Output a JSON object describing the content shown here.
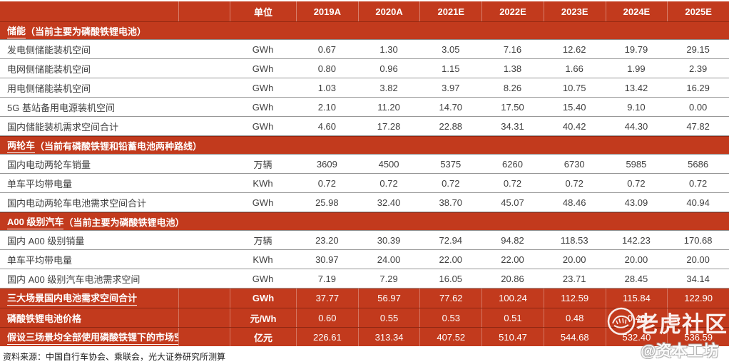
{
  "colors": {
    "primary_red": "#c23a1d",
    "row_text": "#3f3f3f",
    "divider_gray": "#979797",
    "white_text": "#ffffff"
  },
  "table": {
    "header": {
      "labels": [
        "",
        "",
        "单位",
        "2019A",
        "2020A",
        "2021E",
        "2022E",
        "2023E",
        "2024E",
        "2025E"
      ]
    },
    "sections": [
      {
        "title_main": "储能",
        "title_note": "（当前主要为磷酸铁锂电池）",
        "rows": [
          {
            "label": "发电侧储能装机空间",
            "unit": "GWh",
            "values": [
              "0.67",
              "1.30",
              "3.05",
              "7.16",
              "12.62",
              "19.79",
              "29.15"
            ]
          },
          {
            "label": "电网侧储能装机空间",
            "unit": "GWh",
            "values": [
              "0.80",
              "0.96",
              "1.15",
              "1.38",
              "1.66",
              "1.99",
              "2.39"
            ]
          },
          {
            "label": "用电侧储能装机空间",
            "unit": "GWh",
            "values": [
              "1.03",
              "3.82",
              "3.97",
              "8.26",
              "10.75",
              "13.42",
              "16.29"
            ]
          },
          {
            "label": "5G 基站备用电源装机空间",
            "unit": "GWh",
            "values": [
              "2.10",
              "11.20",
              "14.70",
              "17.50",
              "15.40",
              "9.10",
              "0.00"
            ]
          },
          {
            "label": "国内储能装机需求空间合计",
            "unit": "GWh",
            "values": [
              "4.60",
              "17.28",
              "22.88",
              "34.31",
              "40.42",
              "44.30",
              "47.82"
            ]
          }
        ]
      },
      {
        "title_main": "两轮车",
        "title_note": "（当前有磷酸铁锂和铅蓄电池两种路线）",
        "rows": [
          {
            "label": "国内电动两轮车销量",
            "unit": "万辆",
            "values": [
              "3609",
              "4500",
              "5375",
              "6260",
              "6730",
              "5985",
              "5686"
            ]
          },
          {
            "label": "单车平均带电量",
            "unit": "KWh",
            "values": [
              "0.72",
              "0.72",
              "0.72",
              "0.72",
              "0.72",
              "0.72",
              "0.72"
            ]
          },
          {
            "label": "国内电动两轮车电池需求空间合计",
            "unit": "GWh",
            "values": [
              "25.98",
              "32.40",
              "38.70",
              "45.07",
              "48.46",
              "43.09",
              "40.94"
            ]
          }
        ]
      },
      {
        "title_main": "A00 级别汽车",
        "title_note": "（当前主要为磷酸铁锂电池）",
        "rows": [
          {
            "label": "国内 A00 级别销量",
            "unit": "万辆",
            "values": [
              "23.20",
              "30.39",
              "72.94",
              "94.82",
              "118.53",
              "142.23",
              "170.68"
            ]
          },
          {
            "label": "单车平均带电量",
            "unit": "KWh",
            "values": [
              "30.97",
              "24.00",
              "22.00",
              "22.00",
              "20.00",
              "20.00",
              "20.00"
            ]
          },
          {
            "label": "国内 A00 级别汽车电池需求空间",
            "unit": "GWh",
            "values": [
              "7.19",
              "7.29",
              "16.05",
              "20.86",
              "23.71",
              "28.45",
              "34.14"
            ]
          }
        ]
      }
    ],
    "summary_rows": [
      {
        "label": "三大场景国内电池需求空间合计",
        "underline": true,
        "unit": "GWh",
        "values": [
          "37.77",
          "56.97",
          "77.62",
          "100.24",
          "112.59",
          "115.84",
          "122.90"
        ]
      },
      {
        "label": "磷酸铁锂电池价格",
        "underline": false,
        "unit": "元/Wh",
        "values": [
          "0.60",
          "0.55",
          "0.53",
          "0.51",
          "0.48",
          "0.46",
          ""
        ]
      },
      {
        "label": "假设三场景均全部使用磷酸铁锂下的市场空间",
        "underline": true,
        "unit": "亿元",
        "values": [
          "226.61",
          "313.34",
          "407.52",
          "510.47",
          "544.68",
          "532.40",
          "536.59"
        ]
      }
    ]
  },
  "footer": {
    "source_note": "资料来源：中国自行车协会、乘联会，光大证券研究所测算"
  },
  "watermark": {
    "community": "老虎社区",
    "handle": "@资本工坊",
    "logo": "tiger-circle-icon"
  }
}
